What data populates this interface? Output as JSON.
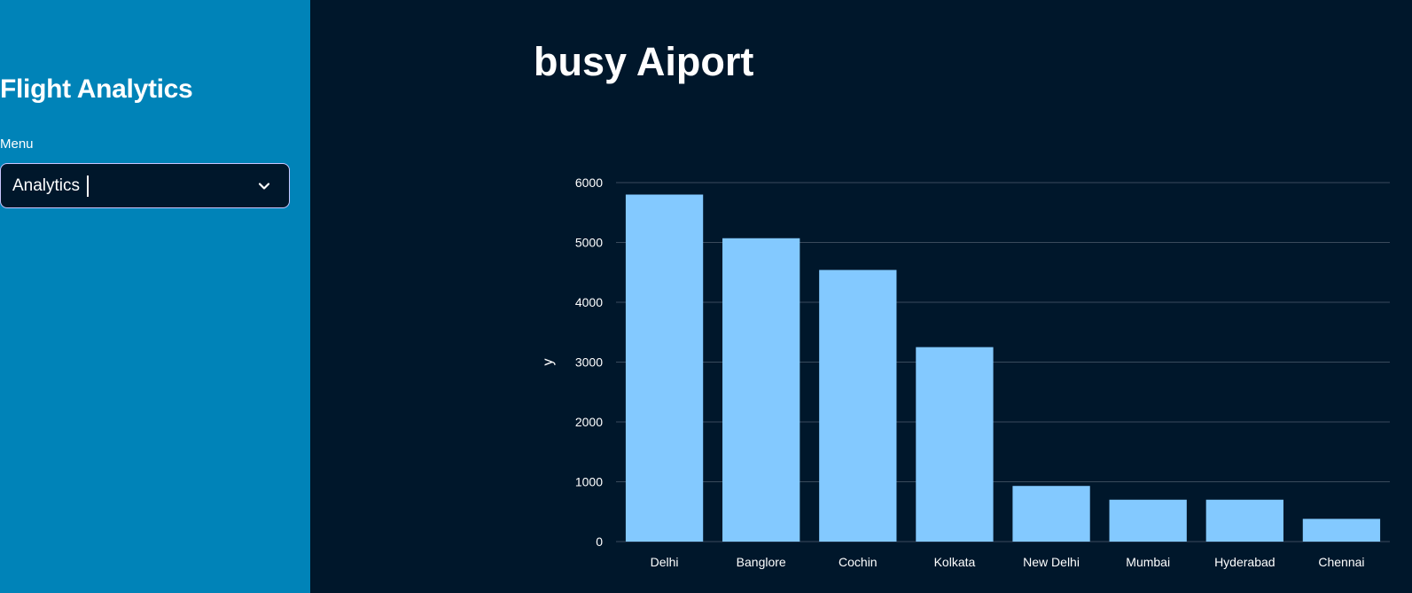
{
  "sidebar": {
    "title": "Flight Analytics",
    "menu_label": "Menu",
    "select": {
      "value": "Analytics"
    }
  },
  "main": {
    "title": "busy Aiport"
  },
  "colors": {
    "sidebar_bg": "#0083b8",
    "main_bg": "#00172b",
    "bar_fill": "#83c9ff",
    "gridline": "#3a4a5c",
    "text": "#ffffff"
  },
  "chart_data": {
    "type": "bar",
    "categories": [
      "Delhi",
      "Banglore",
      "Cochin",
      "Kolkata",
      "New Delhi",
      "Mumbai",
      "Hyderabad",
      "Chennai"
    ],
    "values": [
      5800,
      5070,
      4540,
      3250,
      930,
      700,
      700,
      380
    ],
    "title": "",
    "xlabel": "",
    "ylabel": "y",
    "ylim": [
      0,
      6000
    ],
    "yticks": [
      0,
      1000,
      2000,
      3000,
      4000,
      5000,
      6000
    ],
    "grid": true,
    "legend": "none"
  }
}
